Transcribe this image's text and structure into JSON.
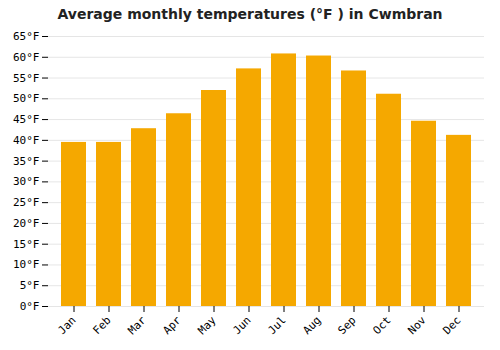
{
  "chart_data": {
    "type": "bar",
    "title": "Average monthly temperatures (°F ) in Cwmbran",
    "categories": [
      "Jan",
      "Feb",
      "Mar",
      "Apr",
      "May",
      "Jun",
      "Jul",
      "Aug",
      "Sep",
      "Oct",
      "Nov",
      "Dec"
    ],
    "values": [
      39.5,
      39.5,
      42.8,
      46.4,
      52.0,
      57.2,
      60.8,
      60.3,
      56.7,
      51.1,
      44.6,
      41.2
    ],
    "color": "#F5A800",
    "ylim": [
      0,
      65
    ],
    "yticks": [
      {
        "value": 0,
        "label": "0°F"
      },
      {
        "value": 5,
        "label": "5°F"
      },
      {
        "value": 10,
        "label": "10°F"
      },
      {
        "value": 15,
        "label": "15°F"
      },
      {
        "value": 20,
        "label": "20°F"
      },
      {
        "value": 25,
        "label": "25°F"
      },
      {
        "value": 30,
        "label": "30°F"
      },
      {
        "value": 35,
        "label": "35°F"
      },
      {
        "value": 40,
        "label": "40°F"
      },
      {
        "value": 45,
        "label": "45°F"
      },
      {
        "value": 50,
        "label": "50°F"
      },
      {
        "value": 55,
        "label": "55°F"
      },
      {
        "value": 60,
        "label": "60°F"
      },
      {
        "value": 65,
        "label": "65°F"
      }
    ],
    "grid": true
  }
}
